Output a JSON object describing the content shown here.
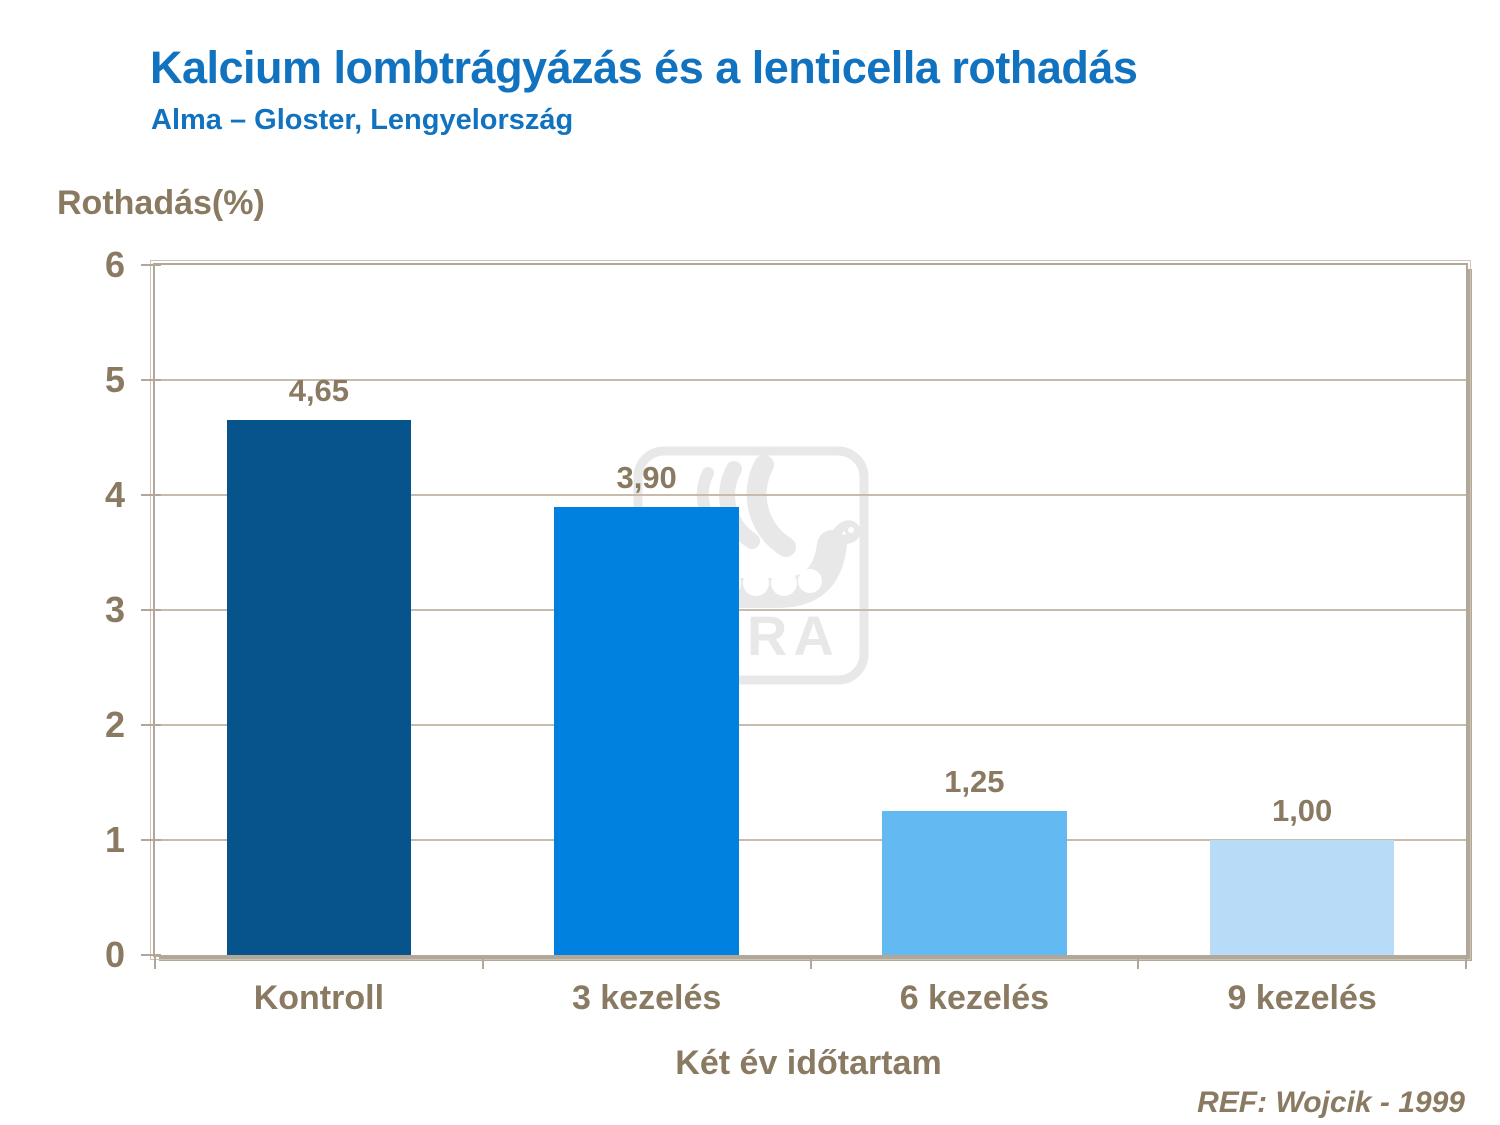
{
  "colors": {
    "title_blue": "#1173BF",
    "text_brown": "#8A7A61",
    "grid_tan": "#C6BCAC",
    "border_tan": "#B2A89A",
    "border_light": "#CDC4B6",
    "watermark_gray": "#E8E8E8",
    "background": "#FFFFFF"
  },
  "chart_data": {
    "type": "bar",
    "title": "Kalcium lombtrágyázás és a lenticella rothadás",
    "subtitle": "Alma – Gloster, Lengyelország",
    "ylabel": "Rothadás(%)",
    "xlabel": "Két év időtartam",
    "categories": [
      "Kontroll",
      "3 kezelés",
      "6 kezelés",
      "9 kezelés"
    ],
    "values": [
      4.65,
      3.9,
      1.25,
      1.0
    ],
    "value_labels": [
      "4,65",
      "3,90",
      "1,25",
      "1,00"
    ],
    "bar_colors": [
      "#06548B",
      "#0081E0",
      "#63BAF3",
      "#B8DCF8"
    ],
    "ylim": [
      0,
      6
    ],
    "yticks": [
      0,
      1,
      2,
      3,
      4,
      5,
      6
    ],
    "grid": true,
    "legend": false,
    "watermark": "YARA",
    "reference": "REF: Wojcik - 1999"
  }
}
